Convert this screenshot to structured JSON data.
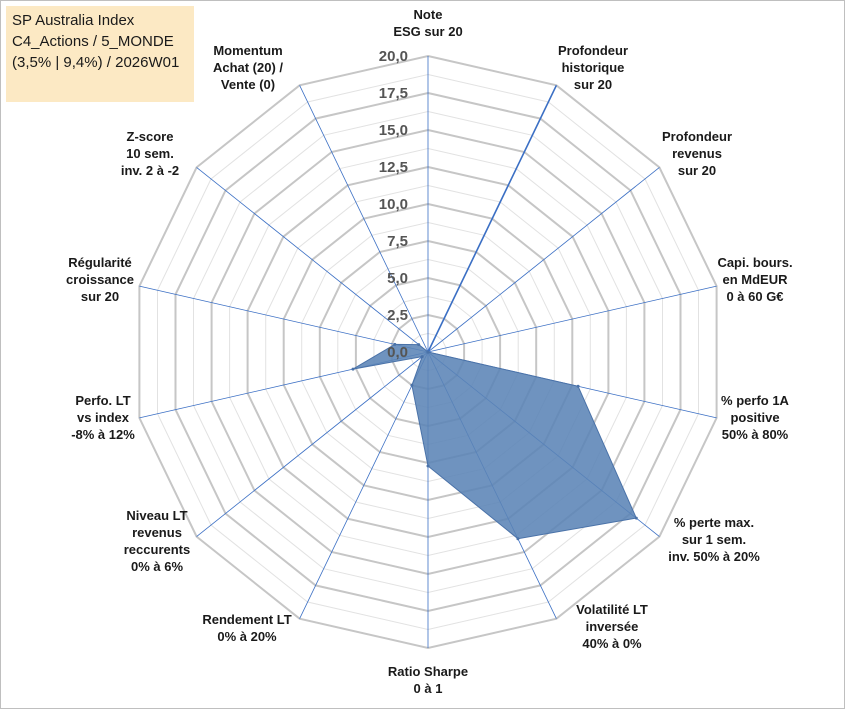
{
  "chart_data": {
    "type": "radar",
    "title_lines": [
      "SP Australia Index",
      "C4_Actions / 5_MONDE",
      "(3,5% | 9,4%) / 2026W01"
    ],
    "rlim": [
      0,
      20
    ],
    "tick_labels": [
      "0,0",
      "2,5",
      "5,0",
      "7,5",
      "10,0",
      "12,5",
      "15,0",
      "17,5",
      "20,0"
    ],
    "axes": [
      {
        "label": [
          "Note",
          "ESG sur 20"
        ],
        "value": 0
      },
      {
        "label": [
          "Profondeur",
          "historique",
          "sur 20"
        ],
        "value": 0
      },
      {
        "label": [
          "Profondeur",
          "revenus",
          "sur 20"
        ],
        "value": 0
      },
      {
        "label": [
          "Capi. bours.",
          "en MdEUR",
          "0 à 60 G€"
        ],
        "value": 0
      },
      {
        "label": [
          "% perfo 1A",
          "positive",
          "50% à 80%"
        ],
        "value": 10.4
      },
      {
        "label": [
          "% perte max.",
          "sur 1 sem.",
          "inv. 50% à 20%"
        ],
        "value": 18.0
      },
      {
        "label": [
          "Volatilité LT",
          "inversée",
          "40% à 0%"
        ],
        "value": 14.0
      },
      {
        "label": [
          "Ratio Sharpe",
          "0 à 1"
        ],
        "value": 7.7
      },
      {
        "label": [
          "Rendement LT",
          "0% à 20%"
        ],
        "value": 2.5
      },
      {
        "label": [
          "Niveau LT",
          "revenus",
          "reccurents",
          "0% à 6%"
        ],
        "value": 0.5
      },
      {
        "label": [
          "Perfo. LT",
          "vs index",
          "-8% à 12%"
        ],
        "value": 5.2
      },
      {
        "label": [
          "Régularité",
          "croissance",
          "sur 20"
        ],
        "value": 2.3
      },
      {
        "label": [
          "Z-score",
          "10 sem.",
          "inv. 2 à -2"
        ],
        "value": 0.8
      },
      {
        "label": [
          "Momentum",
          "Achat (20) /",
          "Vente (0)"
        ],
        "value": 0.0
      }
    ],
    "highlight_axis_line": "Profondeur historique sur 20",
    "colors": {
      "fill": "#5b84b6",
      "fill_edge": "#4a72a8",
      "axis_line": "#3b6fc4",
      "ring": "#c6c6c6",
      "inner_ring": "#e2e2e2"
    }
  }
}
